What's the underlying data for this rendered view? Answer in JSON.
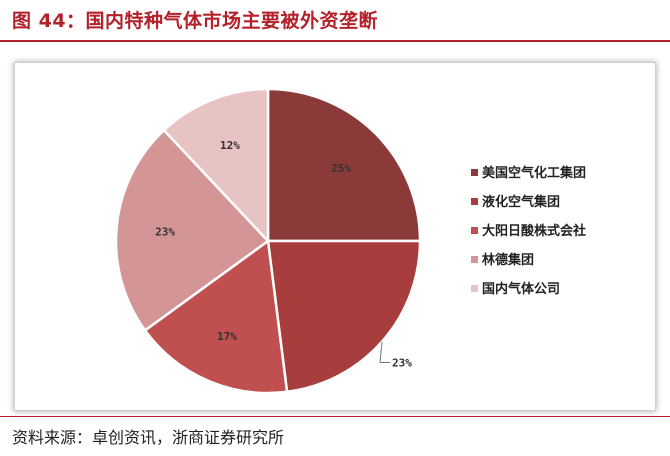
{
  "figure": {
    "title": "图 44：国内特种气体市场主要被外资垄断"
  },
  "chart_data": {
    "type": "pie",
    "legend_position": "right",
    "slices": [
      {
        "name": "美国空气化工集团",
        "value": 25,
        "label": "25%",
        "color": "#8b3a3a"
      },
      {
        "name": "液化空气集团",
        "value": 23,
        "label": "23%",
        "color": "#a83d3e"
      },
      {
        "name": "大阳日酸株式会社",
        "value": 17,
        "label": "17%",
        "color": "#c0504f"
      },
      {
        "name": "林德集团",
        "value": 23,
        "label": "23%",
        "color": "#d49596"
      },
      {
        "name": "国内气体公司",
        "value": 12,
        "label": "12%",
        "color": "#e8c3c4"
      }
    ]
  },
  "source": {
    "text": "资料来源：卓创资讯，浙商证券研究所"
  }
}
